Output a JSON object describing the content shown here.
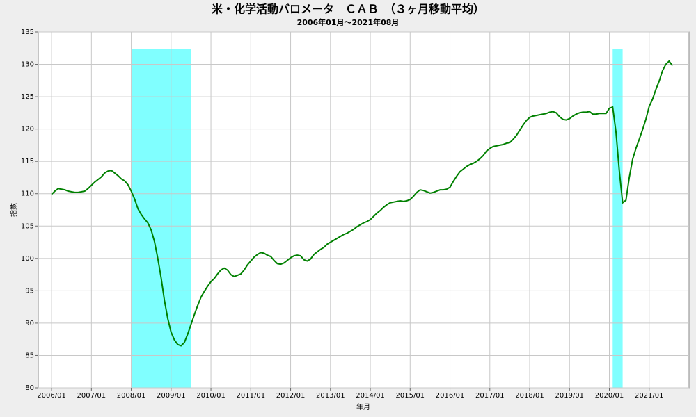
{
  "chart_data": {
    "type": "line",
    "title": "米・化学活動バロメータ　ＣＡＢ　（３ヶ月移動平均）",
    "subtitle": "2006年01月～2021年08月",
    "x_label": "年月",
    "y_label": "指数",
    "x": [
      "2006/01",
      "2006/02",
      "2006/03",
      "2006/04",
      "2006/05",
      "2006/06",
      "2006/07",
      "2006/08",
      "2006/09",
      "2006/10",
      "2006/11",
      "2006/12",
      "2007/01",
      "2007/02",
      "2007/03",
      "2007/04",
      "2007/05",
      "2007/06",
      "2007/07",
      "2007/08",
      "2007/09",
      "2007/10",
      "2007/11",
      "2007/12",
      "2008/01",
      "2008/02",
      "2008/03",
      "2008/04",
      "2008/05",
      "2008/06",
      "2008/07",
      "2008/08",
      "2008/09",
      "2008/10",
      "2008/11",
      "2008/12",
      "2009/01",
      "2009/02",
      "2009/03",
      "2009/04",
      "2009/05",
      "2009/06",
      "2009/07",
      "2009/08",
      "2009/09",
      "2009/10",
      "2009/11",
      "2009/12",
      "2010/01",
      "2010/02",
      "2010/03",
      "2010/04",
      "2010/05",
      "2010/06",
      "2010/07",
      "2010/08",
      "2010/09",
      "2010/10",
      "2010/11",
      "2010/12",
      "2011/01",
      "2011/02",
      "2011/03",
      "2011/04",
      "2011/05",
      "2011/06",
      "2011/07",
      "2011/08",
      "2011/09",
      "2011/10",
      "2011/11",
      "2011/12",
      "2012/01",
      "2012/02",
      "2012/03",
      "2012/04",
      "2012/05",
      "2012/06",
      "2012/07",
      "2012/08",
      "2012/09",
      "2012/10",
      "2012/11",
      "2012/12",
      "2013/01",
      "2013/02",
      "2013/03",
      "2013/04",
      "2013/05",
      "2013/06",
      "2013/07",
      "2013/08",
      "2013/09",
      "2013/10",
      "2013/11",
      "2013/12",
      "2014/01",
      "2014/02",
      "2014/03",
      "2014/04",
      "2014/05",
      "2014/06",
      "2014/07",
      "2014/08",
      "2014/09",
      "2014/10",
      "2014/11",
      "2014/12",
      "2015/01",
      "2015/02",
      "2015/03",
      "2015/04",
      "2015/05",
      "2015/06",
      "2015/07",
      "2015/08",
      "2015/09",
      "2015/10",
      "2015/11",
      "2015/12",
      "2016/01",
      "2016/02",
      "2016/03",
      "2016/04",
      "2016/05",
      "2016/06",
      "2016/07",
      "2016/08",
      "2016/09",
      "2016/10",
      "2016/11",
      "2016/12",
      "2017/01",
      "2017/02",
      "2017/03",
      "2017/04",
      "2017/05",
      "2017/06",
      "2017/07",
      "2017/08",
      "2017/09",
      "2017/10",
      "2017/11",
      "2017/12",
      "2018/01",
      "2018/02",
      "2018/03",
      "2018/04",
      "2018/05",
      "2018/06",
      "2018/07",
      "2018/08",
      "2018/09",
      "2018/10",
      "2018/11",
      "2018/12",
      "2019/01",
      "2019/02",
      "2019/03",
      "2019/04",
      "2019/05",
      "2019/06",
      "2019/07",
      "2019/08",
      "2019/09",
      "2019/10",
      "2019/11",
      "2019/12",
      "2020/01",
      "2020/02",
      "2020/03",
      "2020/04",
      "2020/05",
      "2020/06",
      "2020/07",
      "2020/08",
      "2020/09",
      "2020/10",
      "2020/11",
      "2020/12",
      "2021/01",
      "2021/02",
      "2021/03",
      "2021/04",
      "2021/05",
      "2021/06",
      "2021/07",
      "2021/08"
    ],
    "series": [
      {
        "color": "#008000",
        "values": [
          109.9,
          110.4,
          110.8,
          110.7,
          110.6,
          110.4,
          110.3,
          110.2,
          110.2,
          110.3,
          110.4,
          110.8,
          111.3,
          111.8,
          112.2,
          112.6,
          113.2,
          113.5,
          113.6,
          113.2,
          112.8,
          112.3,
          112.0,
          111.4,
          110.4,
          109.2,
          107.7,
          106.8,
          106.1,
          105.5,
          104.4,
          102.6,
          100.0,
          97.0,
          93.5,
          90.7,
          88.6,
          87.4,
          86.7,
          86.5,
          87.0,
          88.3,
          89.8,
          91.3,
          92.7,
          94.0,
          94.9,
          95.7,
          96.4,
          96.9,
          97.6,
          98.2,
          98.5,
          98.2,
          97.5,
          97.2,
          97.4,
          97.6,
          98.2,
          99.0,
          99.6,
          100.2,
          100.6,
          100.9,
          100.8,
          100.5,
          100.3,
          99.7,
          99.2,
          99.1,
          99.3,
          99.7,
          100.1,
          100.4,
          100.5,
          100.4,
          99.8,
          99.6,
          99.9,
          100.6,
          101.0,
          101.4,
          101.7,
          102.2,
          102.5,
          102.8,
          103.1,
          103.4,
          103.7,
          103.9,
          104.2,
          104.5,
          104.9,
          105.2,
          105.5,
          105.7,
          106.0,
          106.5,
          107.0,
          107.4,
          107.9,
          108.3,
          108.6,
          108.7,
          108.8,
          108.9,
          108.8,
          108.9,
          109.1,
          109.6,
          110.2,
          110.6,
          110.5,
          110.3,
          110.1,
          110.2,
          110.4,
          110.6,
          110.6,
          110.7,
          111.0,
          111.9,
          112.7,
          113.4,
          113.8,
          114.2,
          114.5,
          114.7,
          115.0,
          115.4,
          115.9,
          116.6,
          117.0,
          117.3,
          117.4,
          117.5,
          117.6,
          117.8,
          117.9,
          118.4,
          119.0,
          119.8,
          120.6,
          121.3,
          121.8,
          122.0,
          122.1,
          122.2,
          122.3,
          122.4,
          122.6,
          122.7,
          122.5,
          121.9,
          121.5,
          121.4,
          121.6,
          122.0,
          122.3,
          122.5,
          122.6,
          122.6,
          122.7,
          122.3,
          122.3,
          122.4,
          122.4,
          122.4,
          123.2,
          123.4,
          119.5,
          113.5,
          108.6,
          109.0,
          112.5,
          115.3,
          117.0,
          118.4,
          119.9,
          121.5,
          123.5,
          124.6,
          126.1,
          127.4,
          129.0,
          130.0,
          130.5,
          129.8
        ]
      }
    ],
    "shaded": [
      {
        "start": "2008/01",
        "end": "2009/06"
      },
      {
        "start": "2020/02",
        "end": "2020/04"
      }
    ],
    "shade_top": 132.4,
    "shade_color": "#80ffff",
    "xlim": [
      "2005/09",
      "2022/01"
    ],
    "xticks": [
      "2006/01",
      "2007/01",
      "2008/01",
      "2009/01",
      "2010/01",
      "2011/01",
      "2012/01",
      "2013/01",
      "2014/01",
      "2015/01",
      "2016/01",
      "2017/01",
      "2018/01",
      "2019/01",
      "2020/01",
      "2021/01"
    ],
    "ylim": [
      80,
      135
    ],
    "yticks": [
      80,
      85,
      90,
      95,
      100,
      105,
      110,
      115,
      120,
      125,
      130,
      135
    ],
    "grid": true
  }
}
